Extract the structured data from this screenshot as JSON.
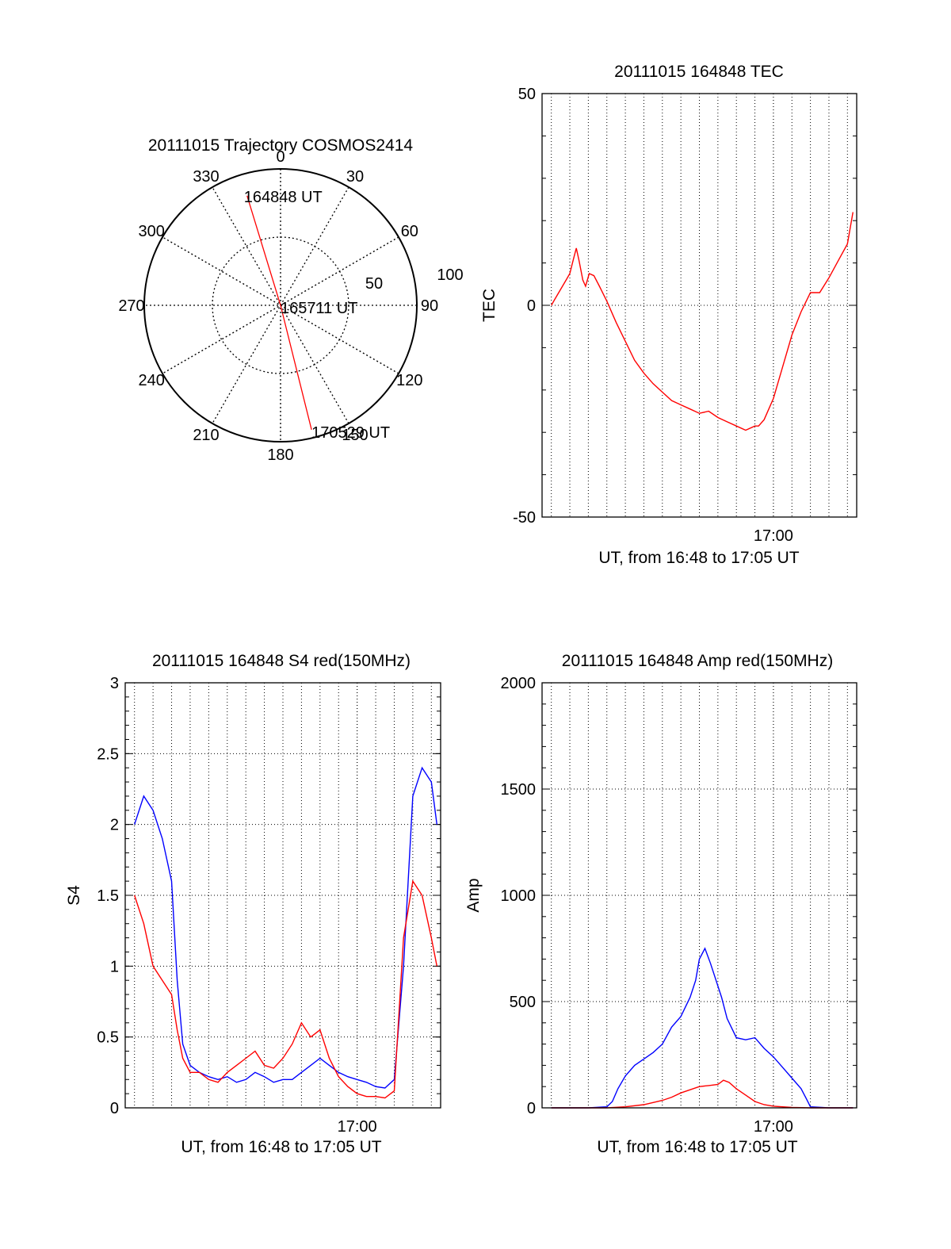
{
  "colors": {
    "red": "#ff0000",
    "blue": "#0000ff",
    "axis": "#000000"
  },
  "chart_data": [
    {
      "type": "polar",
      "title": "20111015 Trajectory COSMOS2414",
      "angle_labels": [
        "0",
        "30",
        "60",
        "90",
        "120",
        "150",
        "180",
        "210",
        "240",
        "270",
        "300",
        "330"
      ],
      "radial_labels": [
        "50",
        "100"
      ],
      "rlim": [
        0,
        100
      ],
      "grid": true,
      "series": [
        {
          "color": "red",
          "points": [
            {
              "azimuth_deg": 343,
              "radius": 84,
              "label": "164848 UT"
            },
            {
              "azimuth_deg": 0,
              "radius": 0,
              "label": "165711 UT"
            },
            {
              "azimuth_deg": 166,
              "radius": 94,
              "label": "170529 UT"
            }
          ]
        }
      ]
    },
    {
      "type": "line",
      "title": "20111015 164848 TEC",
      "xlabel": "UT, from 16:48 to 17:05 UT",
      "ylabel": "TEC",
      "x_unit": "minutes after 16:48 UT",
      "xlim": [
        -0.5,
        16.5
      ],
      "x_ticks": [
        {
          "x": 12,
          "label": "17:00"
        }
      ],
      "x_minor_grid": [
        0,
        1,
        2,
        3,
        4,
        5,
        6,
        7,
        8,
        9,
        10,
        11,
        12,
        13,
        14,
        15,
        16
      ],
      "ylim": [
        -50,
        50
      ],
      "y_ticks": [
        50,
        0,
        -50
      ],
      "grid": true,
      "series": [
        {
          "color": "red",
          "x": [
            0,
            0.2,
            0.4,
            0.6,
            0.8,
            1.0,
            1.2,
            1.35,
            1.5,
            1.7,
            1.85,
            2.05,
            2.3,
            2.6,
            3.0,
            3.5,
            4.0,
            4.5,
            5.0,
            5.5,
            6.0,
            6.5,
            7.0,
            7.5,
            8.0,
            8.5,
            9.0,
            9.5,
            10.0,
            10.5,
            11.0,
            11.2,
            11.5,
            12.0,
            12.5,
            13.0,
            13.5,
            14.0,
            14.5,
            15.0,
            15.5,
            16.0,
            16.3
          ],
          "y": [
            0,
            1.5,
            3,
            4.5,
            6,
            7.5,
            11,
            13.5,
            10.5,
            6,
            4.5,
            7.5,
            7,
            4.5,
            1,
            -4,
            -8.5,
            -13,
            -16,
            -18.5,
            -20.5,
            -22.5,
            -23.5,
            -24.5,
            -25.5,
            -25,
            -26.5,
            -27.5,
            -28.5,
            -29.5,
            -28.5,
            -28.5,
            -27,
            -22,
            -14.5,
            -7,
            -1.5,
            3,
            3,
            6.5,
            10.5,
            14.5,
            22
          ]
        }
      ]
    },
    {
      "type": "line",
      "title": "20111015 164848 S4 red(150MHz)",
      "xlabel": "UT, from 16:48 to 17:05 UT",
      "ylabel": "S4",
      "x_unit": "minutes after 16:48 UT",
      "xlim": [
        -0.5,
        16.5
      ],
      "x_ticks": [
        {
          "x": 12,
          "label": "17:00"
        }
      ],
      "x_minor_grid": [
        0,
        1,
        2,
        3,
        4,
        5,
        6,
        7,
        8,
        9,
        10,
        11,
        12,
        13,
        14,
        15,
        16
      ],
      "ylim": [
        0,
        3
      ],
      "y_ticks": [
        0,
        0.5,
        1,
        1.5,
        2,
        2.5,
        3
      ],
      "grid": true,
      "series": [
        {
          "color": "blue",
          "x": [
            0,
            0.5,
            1.0,
            1.5,
            2.0,
            2.3,
            2.6,
            3.0,
            3.5,
            4.0,
            4.5,
            5.0,
            5.5,
            6.0,
            6.5,
            7.0,
            7.5,
            8.0,
            8.5,
            9.0,
            9.5,
            10.0,
            10.5,
            11.0,
            11.5,
            12.0,
            12.5,
            13.0,
            13.5,
            14.0,
            14.5,
            15.0,
            15.5,
            16.0,
            16.3
          ],
          "y": [
            2.0,
            2.2,
            2.1,
            1.9,
            1.6,
            0.9,
            0.45,
            0.3,
            0.25,
            0.22,
            0.2,
            0.22,
            0.18,
            0.2,
            0.25,
            0.22,
            0.18,
            0.2,
            0.2,
            0.25,
            0.3,
            0.35,
            0.3,
            0.25,
            0.22,
            0.2,
            0.18,
            0.15,
            0.14,
            0.2,
            1.0,
            2.2,
            2.4,
            2.3,
            2.0
          ]
        },
        {
          "color": "red",
          "x": [
            0,
            0.5,
            1.0,
            1.5,
            2.0,
            2.3,
            2.6,
            3.0,
            3.5,
            4.0,
            4.5,
            5.0,
            5.5,
            6.0,
            6.5,
            7.0,
            7.5,
            8.0,
            8.5,
            9.0,
            9.5,
            10.0,
            10.5,
            11.0,
            11.5,
            12.0,
            12.5,
            13.0,
            13.5,
            14.0,
            14.5,
            15.0,
            15.5,
            16.0,
            16.3
          ],
          "y": [
            1.5,
            1.3,
            1.0,
            0.9,
            0.8,
            0.55,
            0.35,
            0.25,
            0.25,
            0.2,
            0.18,
            0.25,
            0.3,
            0.35,
            0.4,
            0.3,
            0.28,
            0.35,
            0.45,
            0.6,
            0.5,
            0.55,
            0.35,
            0.22,
            0.15,
            0.1,
            0.08,
            0.08,
            0.07,
            0.12,
            1.2,
            1.6,
            1.5,
            1.2,
            1.0
          ]
        }
      ]
    },
    {
      "type": "line",
      "title": "20111015 164848 Amp red(150MHz)",
      "xlabel": "UT, from 16:48 to 17:05 UT",
      "ylabel": "Amp",
      "x_unit": "minutes after 16:48 UT",
      "xlim": [
        -0.5,
        16.5
      ],
      "x_ticks": [
        {
          "x": 12,
          "label": "17:00"
        }
      ],
      "x_minor_grid": [
        0,
        1,
        2,
        3,
        4,
        5,
        6,
        7,
        8,
        9,
        10,
        11,
        12,
        13,
        14,
        15,
        16
      ],
      "ylim": [
        0,
        2000
      ],
      "y_ticks": [
        0,
        500,
        1000,
        1500,
        2000
      ],
      "grid": true,
      "series": [
        {
          "color": "blue",
          "x": [
            0,
            1.0,
            2.0,
            3.0,
            3.3,
            3.6,
            4.0,
            4.5,
            5.0,
            5.5,
            6.0,
            6.5,
            7.0,
            7.5,
            7.8,
            8.0,
            8.3,
            8.6,
            8.9,
            9.2,
            9.5,
            10.0,
            10.5,
            11.0,
            11.5,
            12.0,
            12.5,
            13.0,
            13.5,
            13.8,
            14.0,
            15.0,
            16.3
          ],
          "y": [
            0,
            0,
            0,
            5,
            30,
            90,
            150,
            200,
            230,
            260,
            300,
            380,
            430,
            520,
            600,
            700,
            750,
            680,
            600,
            520,
            420,
            330,
            320,
            330,
            280,
            240,
            190,
            140,
            90,
            40,
            5,
            0,
            0
          ]
        },
        {
          "color": "red",
          "x": [
            0,
            1.0,
            2.0,
            3.0,
            4.0,
            5.0,
            6.0,
            6.5,
            7.0,
            7.5,
            8.0,
            8.5,
            9.0,
            9.3,
            9.6,
            10.0,
            10.5,
            11.0,
            11.5,
            12.0,
            13.0,
            14.0,
            15.0,
            16.3
          ],
          "y": [
            0,
            0,
            0,
            0,
            5,
            15,
            35,
            50,
            70,
            85,
            100,
            105,
            110,
            130,
            120,
            90,
            60,
            30,
            15,
            8,
            2,
            0,
            0,
            0
          ]
        }
      ]
    }
  ]
}
